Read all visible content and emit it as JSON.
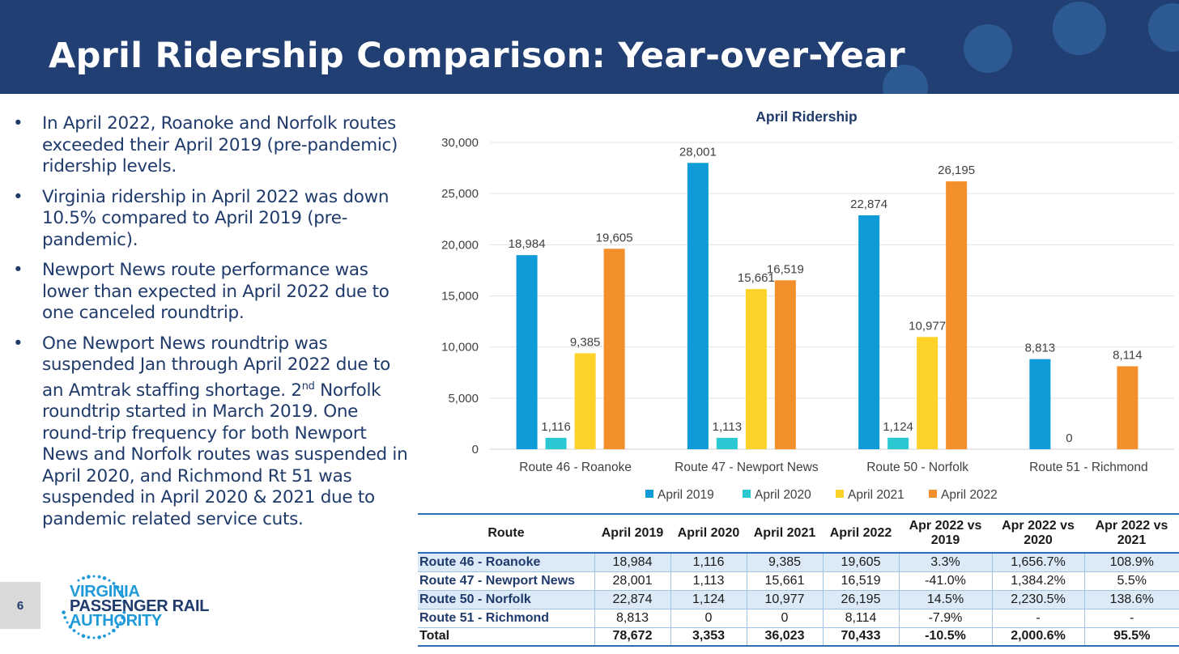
{
  "slide": {
    "title": "April Ridership Comparison: Year-over-Year",
    "page_number": "6"
  },
  "bullets": [
    "In April 2022, Roanoke and Norfolk routes exceeded their April 2019 (pre-pandemic) ridership levels.",
    "Virginia ridership in April 2022 was down 10.5% compared to April 2019 (pre-pandemic).",
    "Newport News route performance was lower than expected in April 2022 due to one canceled roundtrip.",
    "One Newport News roundtrip was suspended Jan through April 2022 due to an Amtrak staffing shortage. 2nd Norfolk roundtrip started in March 2019. One round-trip frequency for both Newport News and Norfolk routes was suspended in April 2020, and Richmond Rt 51 was suspended in April 2020 & 2021 due to pandemic related service cuts."
  ],
  "logo": {
    "line1": "VIRGINIA",
    "line2": "PASSENGER RAIL",
    "line3": "AUTHORITY"
  },
  "chart_data": {
    "type": "bar",
    "title": "April Ridership",
    "categories": [
      "Route 46 - Roanoke",
      "Route 47 - Newport News",
      "Route 50 - Norfolk",
      "Route 51 - Richmond"
    ],
    "series": [
      {
        "name": "April 2019",
        "color": "#0f9bd7",
        "values": [
          18984,
          28001,
          22874,
          8813
        ]
      },
      {
        "name": "April 2020",
        "color": "#2cc8d2",
        "values": [
          1116,
          1113,
          1124,
          0
        ]
      },
      {
        "name": "April 2021",
        "color": "#fdd32a",
        "values": [
          9385,
          15661,
          10977,
          0
        ]
      },
      {
        "name": "April 2022",
        "color": "#f4902b",
        "values": [
          19605,
          16519,
          26195,
          8114
        ]
      }
    ],
    "data_labels": [
      [
        "18,984",
        "28,001",
        "22,874",
        "8,813"
      ],
      [
        "1,116",
        "1,113",
        "1,124",
        "0"
      ],
      [
        "9,385",
        "15,661",
        "10,977",
        ""
      ],
      [
        "19,605",
        "16,519",
        "26,195",
        "8,114"
      ]
    ],
    "yticks": [
      "0",
      "5,000",
      "10,000",
      "15,000",
      "20,000",
      "25,000",
      "30,000"
    ],
    "ylim": [
      0,
      30000
    ],
    "grid": true,
    "legend_position": "bottom"
  },
  "table": {
    "headers": [
      "Route",
      "April 2019",
      "April 2020",
      "April 2021",
      "April 2022",
      "Apr 2022 vs 2019",
      "Apr 2022 vs 2020",
      "Apr 2022 vs 2021"
    ],
    "rows": [
      [
        "Route 46 - Roanoke",
        "18,984",
        "1,116",
        "9,385",
        "19,605",
        "3.3%",
        "1,656.7%",
        "108.9%"
      ],
      [
        "Route 47 - Newport News",
        "28,001",
        "1,113",
        "15,661",
        "16,519",
        "-41.0%",
        "1,384.2%",
        "5.5%"
      ],
      [
        "Route 50 - Norfolk",
        "22,874",
        "1,124",
        "10,977",
        "26,195",
        "14.5%",
        "2,230.5%",
        "138.6%"
      ],
      [
        "Route 51 - Richmond",
        "8,813",
        "0",
        "0",
        "8,114",
        "-7.9%",
        "-",
        "-"
      ]
    ],
    "total": [
      "Total",
      "78,672",
      "3,353",
      "36,023",
      "70,433",
      "-10.5%",
      "2,000.6%",
      "95.5%"
    ]
  }
}
